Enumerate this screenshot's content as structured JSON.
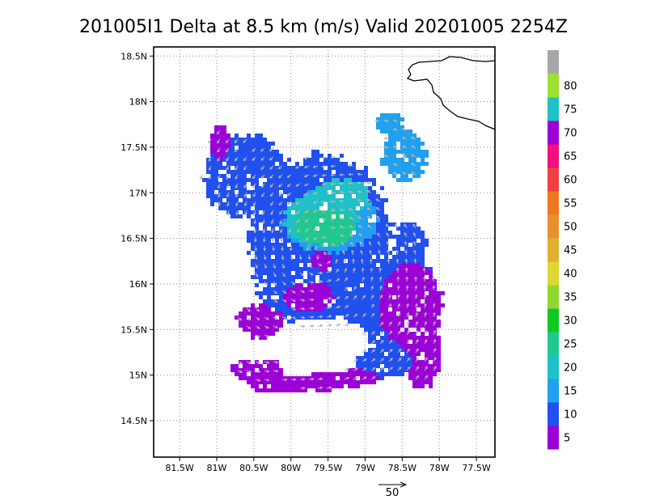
{
  "title": "201005I1 Delta at 8.5 km (m/s) Valid 20201005 2254Z",
  "map": {
    "lon_range": [
      -81.85,
      -77.25
    ],
    "lat_range": [
      14.1,
      18.6
    ],
    "x_ticks": [
      {
        "value": -81.5,
        "label": "81.5W"
      },
      {
        "value": -81.0,
        "label": "81W"
      },
      {
        "value": -80.5,
        "label": "80.5W"
      },
      {
        "value": -80.0,
        "label": "80W"
      },
      {
        "value": -79.5,
        "label": "79.5W"
      },
      {
        "value": -79.0,
        "label": "79W"
      },
      {
        "value": -78.5,
        "label": "78.5W"
      },
      {
        "value": -78.0,
        "label": "78W"
      },
      {
        "value": -77.5,
        "label": "77.5W"
      }
    ],
    "y_ticks": [
      {
        "value": 14.5,
        "label": "14.5N"
      },
      {
        "value": 15.0,
        "label": "15N"
      },
      {
        "value": 15.5,
        "label": "15.5N"
      },
      {
        "value": 16.0,
        "label": "16N"
      },
      {
        "value": 16.5,
        "label": "16.5N"
      },
      {
        "value": 17.0,
        "label": "17N"
      },
      {
        "value": 17.5,
        "label": "17.5N"
      },
      {
        "value": 18.0,
        "label": "18N"
      },
      {
        "value": 18.5,
        "label": "18.5N"
      }
    ],
    "grid": "dotted",
    "coastline_color": "#000000",
    "vector_color": "#b4b4b4",
    "storm_center": {
      "lon": -79.55,
      "lat": 16.3
    }
  },
  "colorbar": {
    "levels": [
      {
        "label": "5",
        "color": "#9b00d6"
      },
      {
        "label": "10",
        "color": "#2050ee"
      },
      {
        "label": "15",
        "color": "#20a0ee"
      },
      {
        "label": "20",
        "color": "#20c0c8"
      },
      {
        "label": "25",
        "color": "#20c890"
      },
      {
        "label": "30",
        "color": "#10c820"
      },
      {
        "label": "35",
        "color": "#90d830"
      },
      {
        "label": "40",
        "color": "#e0d830"
      },
      {
        "label": "45",
        "color": "#e0b030"
      },
      {
        "label": "50",
        "color": "#e89030"
      },
      {
        "label": "55",
        "color": "#f07820"
      },
      {
        "label": "60",
        "color": "#f04040"
      },
      {
        "label": "65",
        "color": "#f01080"
      },
      {
        "label": "70",
        "color": "#9b00d6"
      },
      {
        "label": "75",
        "color": "#20c0c8"
      },
      {
        "label": "80",
        "color": "#a0e030"
      }
    ],
    "top_color": "#a8a8a8"
  },
  "reference_vector": {
    "label": "50"
  }
}
